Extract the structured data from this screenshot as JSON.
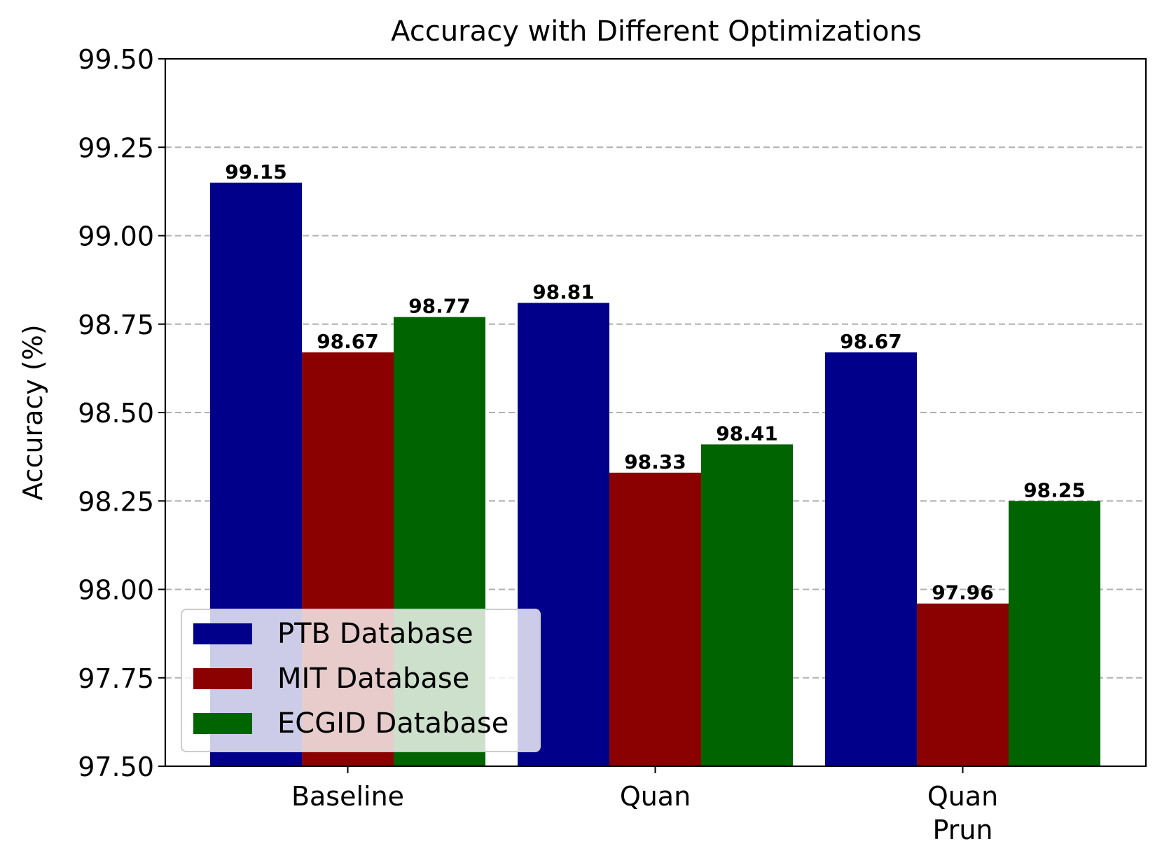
{
  "chart_data": {
    "type": "bar",
    "title": "Accuracy with Different Optimizations",
    "xlabel": "",
    "ylabel": "Accuracy (%)",
    "ylim": [
      97.5,
      99.5
    ],
    "yticks": [
      97.5,
      97.75,
      98.0,
      98.25,
      98.5,
      98.75,
      99.0,
      99.25,
      99.5
    ],
    "ytick_labels": [
      "97.50",
      "97.75",
      "98.00",
      "98.25",
      "98.50",
      "98.75",
      "99.00",
      "99.25",
      "99.50"
    ],
    "grid": "y-dashed",
    "legend_position": "lower-left",
    "categories": [
      [
        "Baseline"
      ],
      [
        "Quan"
      ],
      [
        "Quan",
        "Prun"
      ]
    ],
    "series": [
      {
        "name": "PTB Database",
        "color": "#00008b",
        "values": [
          99.15,
          98.81,
          98.67
        ],
        "labels": [
          "99.15",
          "98.81",
          "98.67"
        ]
      },
      {
        "name": "MIT Database",
        "color": "#8b0000",
        "values": [
          98.67,
          98.33,
          97.96
        ],
        "labels": [
          "98.67",
          "98.33",
          "97.96"
        ]
      },
      {
        "name": "ECGID Database",
        "color": "#006400",
        "values": [
          98.77,
          98.41,
          98.25
        ],
        "labels": [
          "98.77",
          "98.41",
          "98.25"
        ]
      }
    ]
  }
}
